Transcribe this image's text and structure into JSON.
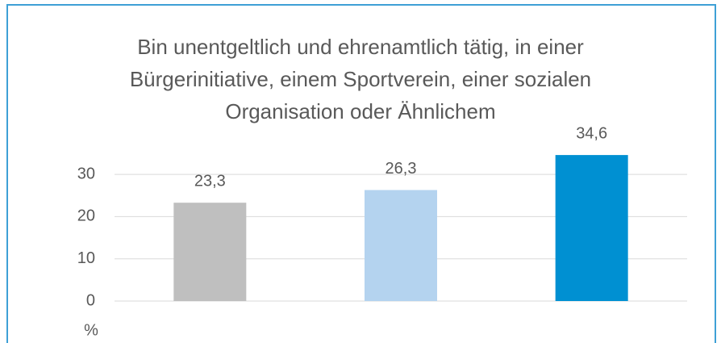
{
  "chart_data": {
    "type": "bar",
    "title": "Bin unentgeltlich und ehrenamtlich tätig, in einer\nBürgerinitiative, einem Sportverein, einer sozialen\nOrganisation oder Ähnlichem",
    "y_label": "%",
    "categories": [
      null,
      null,
      null
    ],
    "values": [
      23.3,
      26.3,
      34.6
    ],
    "value_labels": [
      "23,3",
      "26,3",
      "34,6"
    ],
    "colors": [
      "#bfbfbf",
      "#b4d3ef",
      "#0090d2"
    ],
    "ylim": [
      0,
      35
    ],
    "yticks": [
      0,
      10,
      20,
      30
    ],
    "grid": true
  }
}
